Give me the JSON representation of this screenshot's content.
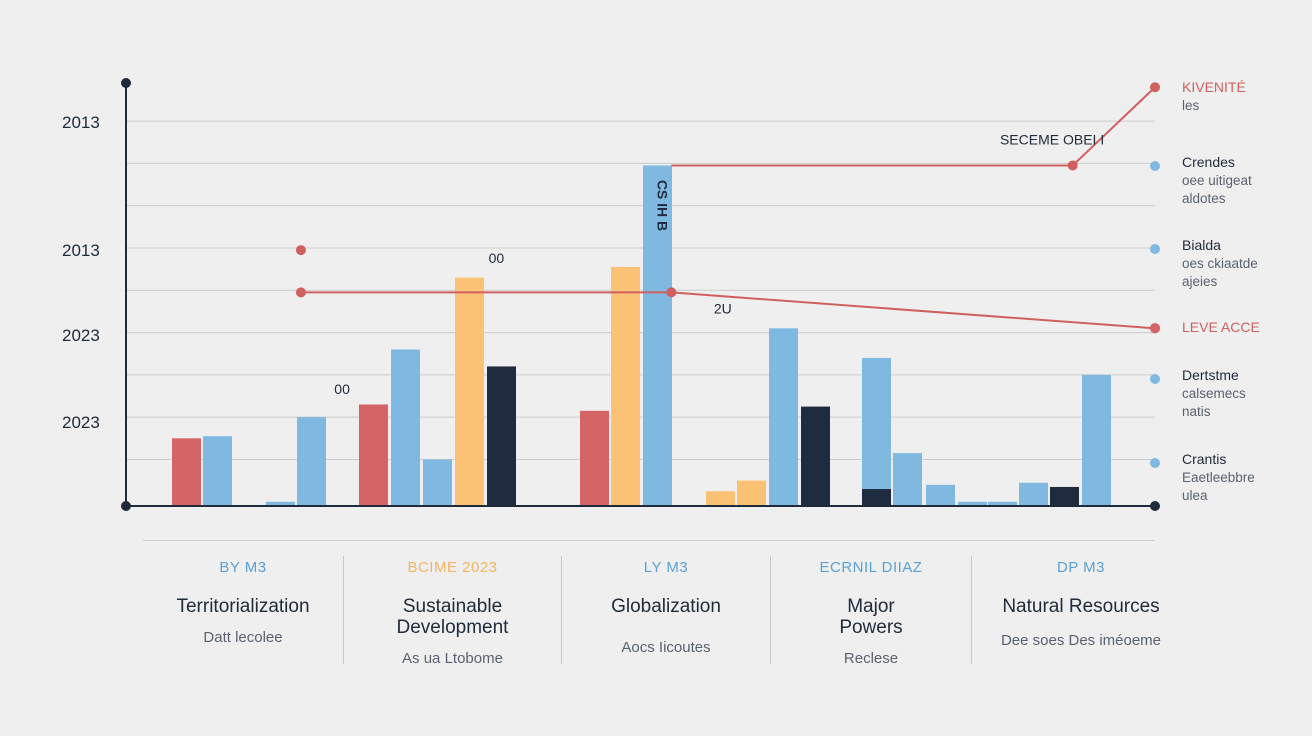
{
  "colors": {
    "red": "#d46466",
    "blue": "#7fb8e0",
    "orange": "#fbc275",
    "navy": "#1f2b3e",
    "axis": "#1f2a3a",
    "grid": "#cccccc",
    "redline": "#d06060"
  },
  "chart_data": {
    "type": "bar",
    "y_tick_labels": [
      "2013",
      "2013",
      "2023",
      "2023"
    ],
    "ylim": [
      0,
      100
    ],
    "grid": true,
    "bars": [
      {
        "color": "red",
        "value": 16
      },
      {
        "color": "blue",
        "value": 16.5
      },
      {
        "color": "blue",
        "value": 1
      },
      {
        "color": "blue",
        "value": 21
      },
      {
        "color": "red",
        "value": 24
      },
      {
        "color": "blue",
        "value": 37
      },
      {
        "color": "blue",
        "value": 11
      },
      {
        "color": "orange",
        "value": 54
      },
      {
        "color": "navy",
        "value": 33
      },
      {
        "color": "red",
        "value": 22.5
      },
      {
        "color": "orange",
        "value": 56.5
      },
      {
        "color": "blue",
        "value": 80.5,
        "label": "CS IH B"
      },
      {
        "color": "orange",
        "value": 3.5
      },
      {
        "color": "orange",
        "value": 6
      },
      {
        "color": "blue",
        "value": 42
      },
      {
        "color": "navy",
        "value": 23.5
      },
      {
        "color": "navy",
        "value": 4
      },
      {
        "color": "blue",
        "value": 35
      },
      {
        "color": "blue",
        "value": 12.5
      },
      {
        "color": "blue",
        "value": 5
      },
      {
        "color": "blue",
        "value": 1
      },
      {
        "color": "blue",
        "value": 1
      },
      {
        "color": "blue",
        "value": 5.5
      },
      {
        "color": "navy",
        "value": 4.5
      },
      {
        "color": "blue",
        "value": 31
      }
    ],
    "red_line_series": [
      {
        "x": 0.17,
        "y": 50.5
      },
      {
        "x": 0.53,
        "y": 50.5
      },
      {
        "x": 1.0,
        "y": 42
      }
    ],
    "red_upper_series": [
      {
        "x": 0.53,
        "y": 80.5
      },
      {
        "x": 0.92,
        "y": 80.5
      },
      {
        "x": 1.0,
        "y": 99
      }
    ],
    "isolated_points": [
      {
        "x": 0.17,
        "y": 60.5
      }
    ],
    "annotations": [
      {
        "text": "00",
        "x": 0.36,
        "y": 57.5
      },
      {
        "text": "00",
        "x": 0.21,
        "y": 26.5
      },
      {
        "text": "2U",
        "x": 0.58,
        "y": 45.5
      },
      {
        "text": "SECEME OBEI I",
        "x": 0.9,
        "y": 85.5
      }
    ],
    "legend": [
      {
        "title": "KIVENITÉ",
        "sub": [
          "les"
        ],
        "color": "red"
      },
      {
        "title": "Crendes",
        "sub": [
          "oee uitigeat",
          "aldotes"
        ],
        "color": "blue"
      },
      {
        "title": "Bialda",
        "sub": [
          "oes ckiaatde",
          "ajeies"
        ],
        "color": "blue"
      },
      {
        "title": "LEVE ACCE",
        "sub": [],
        "color": "red"
      },
      {
        "title": "Dertstme",
        "sub": [
          "calsemecs",
          "natis"
        ],
        "color": "blue"
      },
      {
        "title": "Crantis",
        "sub": [
          "Eaetleebbre",
          "ulea"
        ],
        "color": "blue"
      }
    ]
  },
  "categories": [
    {
      "code": "BY M3",
      "name": "Territorialization",
      "sub": "Datt lecolee",
      "code_color": "#5aa1d6"
    },
    {
      "code": "BCIME 2023",
      "name": "Sustainable Development",
      "sub": "As ua Ltobome",
      "code_color": "#f4b460"
    },
    {
      "code": "LY M3",
      "name": "Globalization",
      "sub": "Aocs Iicoutes",
      "code_color": "#5aa1d6"
    },
    {
      "code": "ECRNIL DIIAZ",
      "name": "Major Powers",
      "sub": "Reclese",
      "code_color": "#5aa1d6"
    },
    {
      "code": "DP M3",
      "name": "Natural Resources",
      "sub": "Dee soes Des iméoeme",
      "code_color": "#5aa1d6"
    }
  ]
}
